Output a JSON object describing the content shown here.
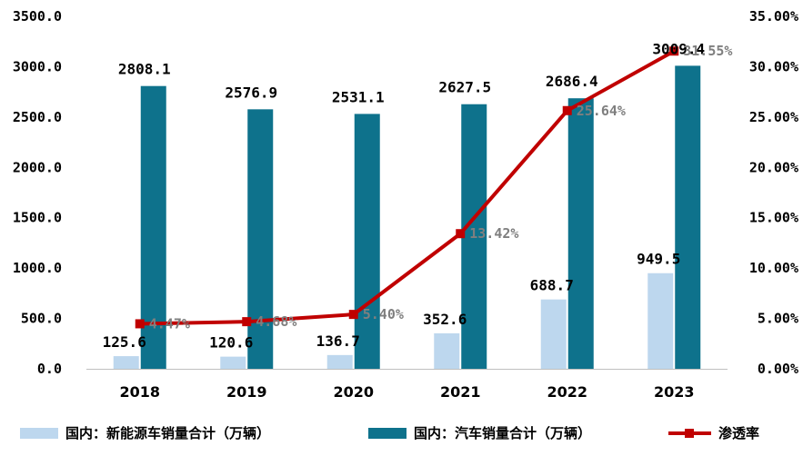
{
  "chart_data": {
    "type": "bar",
    "categories": [
      "2018",
      "2019",
      "2020",
      "2021",
      "2022",
      "2023"
    ],
    "series": [
      {
        "name": "国内：新能源车销量合计（万辆）",
        "type": "bar",
        "axis": "left",
        "color": "#bdd7ee",
        "values": [
          125.6,
          120.6,
          136.7,
          352.6,
          688.7,
          949.5
        ],
        "labels": [
          "125.6",
          "120.6",
          "136.7",
          "352.6",
          "688.7",
          "949.5"
        ]
      },
      {
        "name": "国内：汽车销量合计（万辆）",
        "type": "bar",
        "axis": "left",
        "color": "#0e728c",
        "values": [
          2808.1,
          2576.9,
          2531.1,
          2627.5,
          2686.4,
          3009.4
        ],
        "labels": [
          "2808.1",
          "2576.9",
          "2531.1",
          "2627.5",
          "2686.4",
          "3009.4"
        ]
      },
      {
        "name": "渗透率",
        "type": "line",
        "axis": "right",
        "color": "#c00000",
        "values": [
          4.47,
          4.68,
          5.4,
          13.42,
          25.64,
          31.55
        ],
        "labels": [
          "4.47%",
          "4.68%",
          "5.40%",
          "13.42%",
          "25.64%",
          "31.55%"
        ]
      }
    ],
    "y_left": {
      "lim": [
        0,
        3500
      ],
      "ticks": [
        "0.0",
        "500.0",
        "1000.0",
        "1500.0",
        "2000.0",
        "2500.0",
        "3000.0",
        "3500.0"
      ]
    },
    "y_right": {
      "lim": [
        0,
        35
      ],
      "ticks": [
        "0.00%",
        "5.00%",
        "10.00%",
        "15.00%",
        "20.00%",
        "25.00%",
        "30.00%",
        "35.00%"
      ]
    },
    "grid": false,
    "legend_position": "bottom"
  }
}
